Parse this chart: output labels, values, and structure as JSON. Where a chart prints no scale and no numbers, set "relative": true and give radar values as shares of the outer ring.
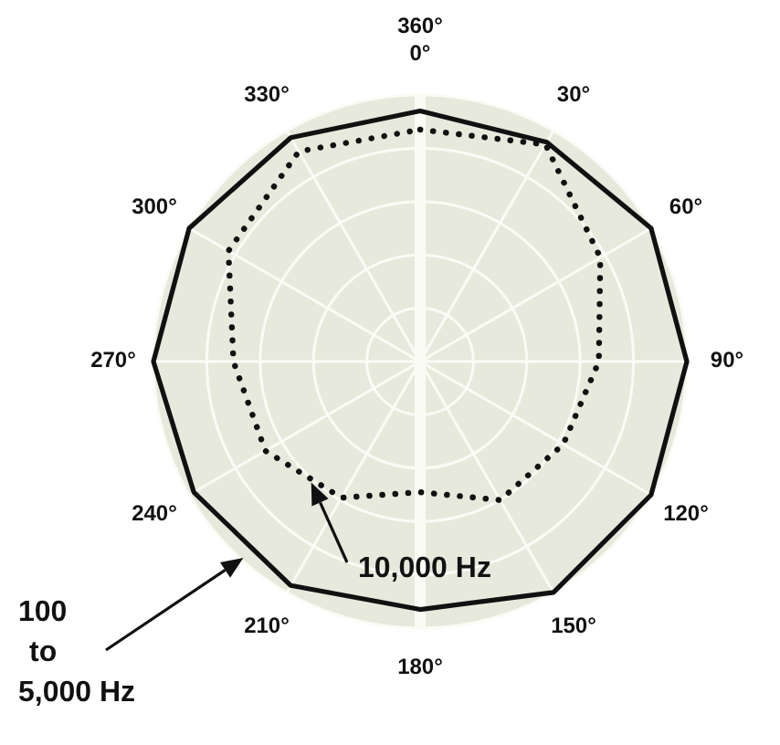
{
  "chart_data": {
    "type": "radar",
    "relative": true,
    "grid": true,
    "line_style": "solid",
    "marker": "none",
    "categories": [
      "0°",
      "30°",
      "60°",
      "90°",
      "120°",
      "150°",
      "180°",
      "210°",
      "240°",
      "270°",
      "300°",
      "330°"
    ],
    "annotations": [
      "360°"
    ],
    "series": [
      {
        "name": "100 to 5,000 Hz",
        "color": "#111111",
        "values": [
          0.94,
          0.95,
          1.0,
          1.0,
          1.0,
          1.0,
          0.93,
          0.97,
          0.98,
          1.0,
          1.0,
          0.97
        ]
      },
      {
        "name": "10,000 Hz",
        "color": "#111111",
        "line_style": "dotted",
        "values": [
          0.87,
          0.94,
          0.78,
          0.67,
          0.62,
          0.6,
          0.49,
          0.59,
          0.67,
          0.7,
          0.83,
          0.91
        ]
      }
    ]
  }
}
